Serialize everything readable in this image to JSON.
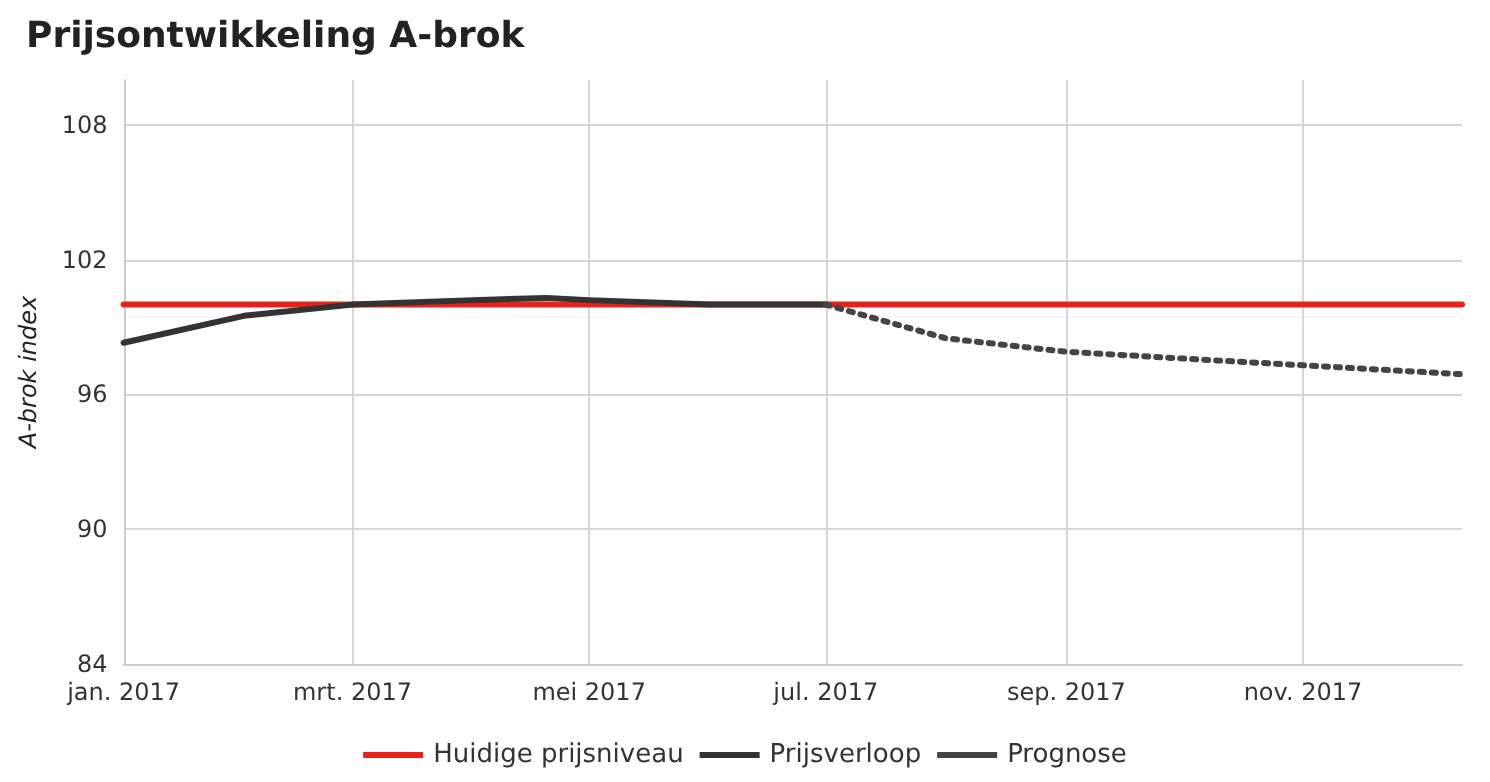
{
  "chart_data": {
    "type": "line",
    "title": "Prijsontwikkeling A-brok",
    "ylabel": "A-brok index",
    "xlim": [
      "2017-01-01",
      "2017-12-12"
    ],
    "xticks": [
      {
        "value": "2017-01-01",
        "label": "jan. 2017"
      },
      {
        "value": "2017-03-01",
        "label": "mrt. 2017"
      },
      {
        "value": "2017-05-01",
        "label": "mei 2017"
      },
      {
        "value": "2017-07-01",
        "label": "jul. 2017"
      },
      {
        "value": "2017-09-01",
        "label": "sep. 2017"
      },
      {
        "value": "2017-11-01",
        "label": "nov. 2017"
      }
    ],
    "ylim": [
      84,
      110
    ],
    "yticks": [
      84,
      90,
      96,
      102,
      108
    ],
    "series": [
      {
        "name": "Huidige prijsniveau",
        "color": "#e8221b",
        "line_style": "solid",
        "x": [
          "2017-01-01",
          "2017-12-12"
        ],
        "values": [
          100,
          100
        ]
      },
      {
        "name": "Prijsverloop",
        "color": "#333333",
        "line_style": "solid",
        "x": [
          "2017-01-01",
          "2017-02-01",
          "2017-03-01",
          "2017-04-01",
          "2017-04-20",
          "2017-05-01",
          "2017-06-01",
          "2017-07-01"
        ],
        "values": [
          98.3,
          99.5,
          100,
          100.2,
          100.3,
          100.2,
          100,
          100
        ]
      },
      {
        "name": "Prognose",
        "color": "#444444",
        "line_style": "dotted",
        "x": [
          "2017-07-01",
          "2017-08-01",
          "2017-09-01",
          "2017-10-01",
          "2017-11-01",
          "2017-12-12"
        ],
        "values": [
          100,
          98.5,
          97.9,
          97.6,
          97.3,
          96.9
        ]
      }
    ],
    "grid": true,
    "legend": "bottom",
    "marker": "none"
  }
}
